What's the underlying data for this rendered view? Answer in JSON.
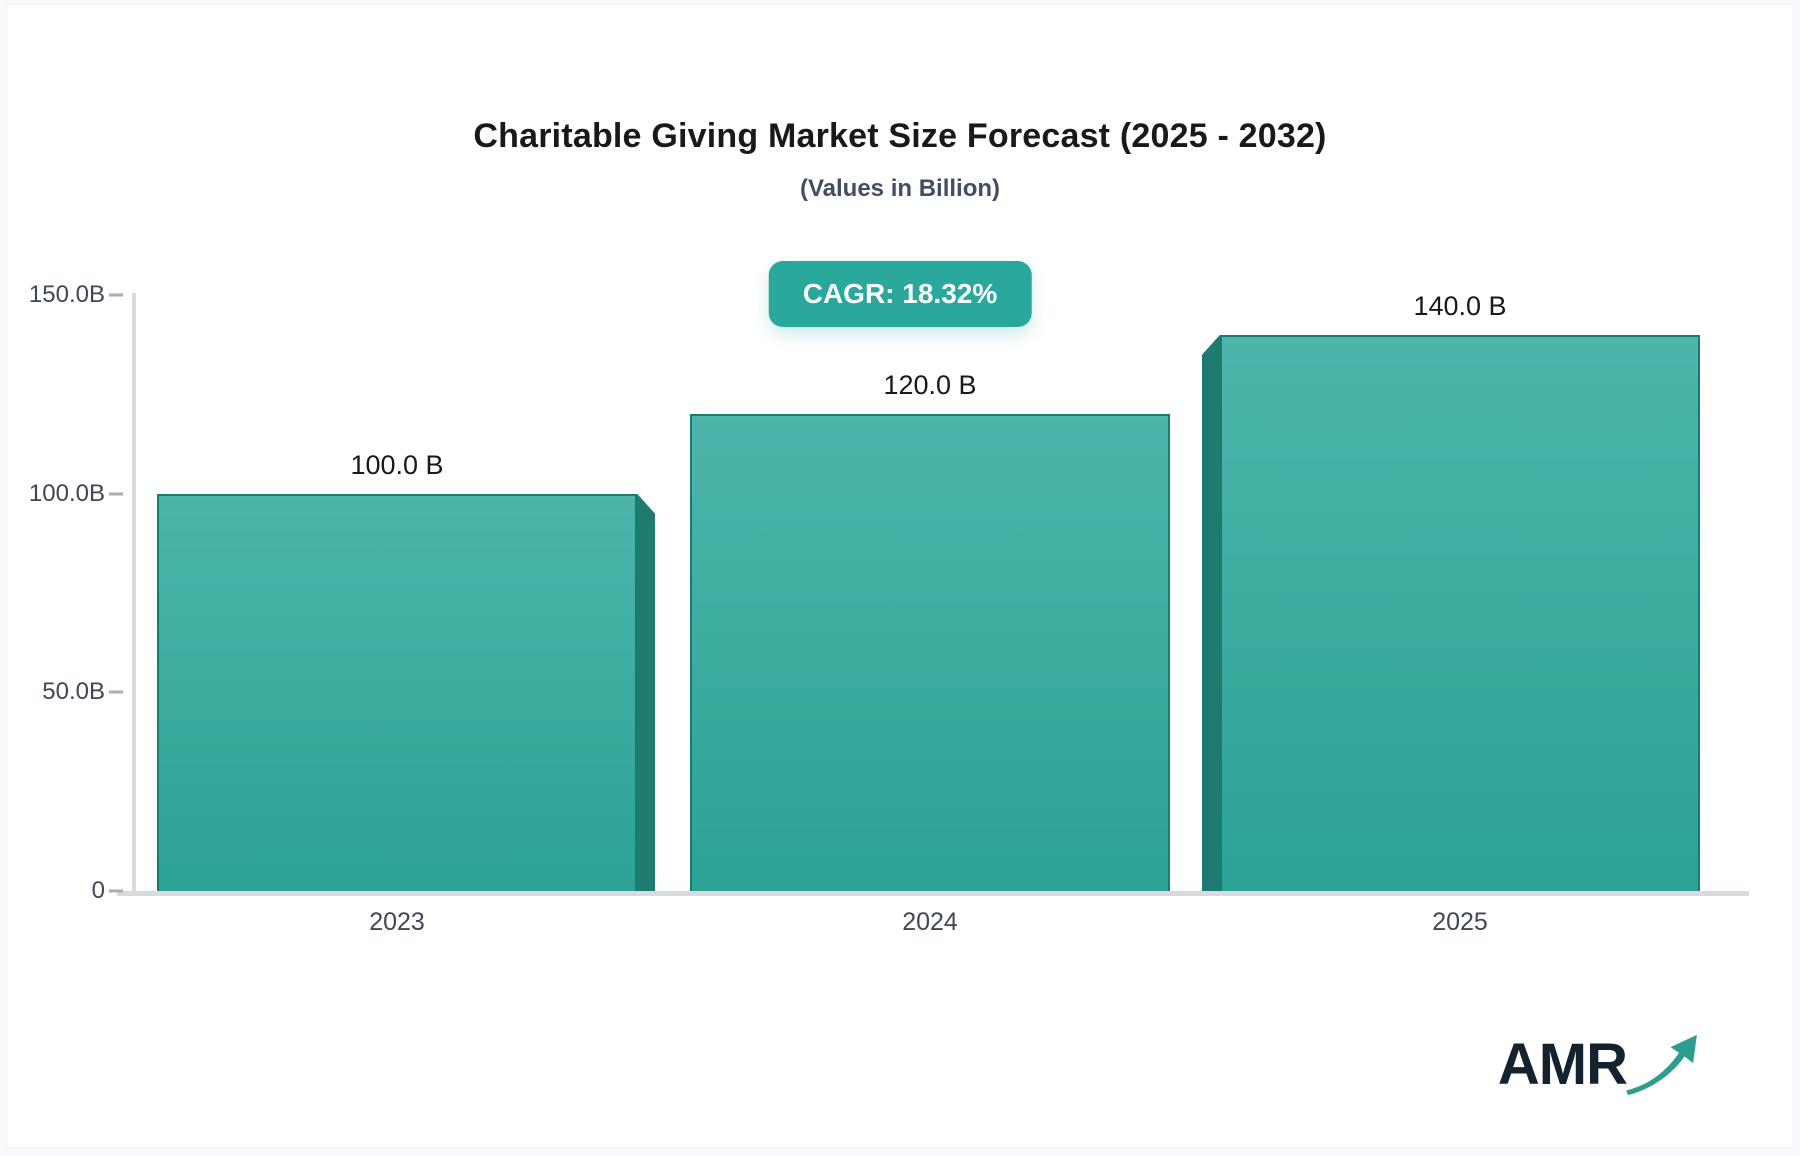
{
  "page": {
    "title": "Charitable Giving Market Size Forecast (2025 - 2032)",
    "subtitle": "(Values in Billion)",
    "cagr_badge": "CAGR: 18.32%",
    "logo_text": "AMR"
  },
  "colors": {
    "bar_gradient_top": "#4db5ab",
    "bar_gradient_bottom": "#2ba295",
    "bar_side_face": "#1f7b70",
    "bar_border": "#177d70",
    "badge_background": "#2aa89b",
    "axis_line": "#d7dbe0",
    "label_dark": "#17191c",
    "label_slate": "#3e4757",
    "logo_navy": "#14212e",
    "logo_arrow_teal": "#2f9c90"
  },
  "chart_data": {
    "type": "bar",
    "title": "Charitable Giving Market Size Forecast (2025 - 2032)",
    "subtitle": "(Values in Billion)",
    "annotation": "CAGR: 18.32%",
    "categories": [
      "2023",
      "2024",
      "2025"
    ],
    "values": [
      100.0,
      120.0,
      140.0
    ],
    "bar_labels": [
      "100.0 B",
      "120.0 B",
      "140.0 B"
    ],
    "ylim": [
      0,
      150
    ],
    "yticks": [
      {
        "label": "150.0B",
        "value": 150
      },
      {
        "label": "100.0B",
        "value": 100
      },
      {
        "label": "50.0B",
        "value": 50
      },
      {
        "label": "0",
        "value": 0
      }
    ],
    "grid": false,
    "legend": "none",
    "bar_3d_sides": [
      "right",
      "none",
      "left"
    ]
  }
}
